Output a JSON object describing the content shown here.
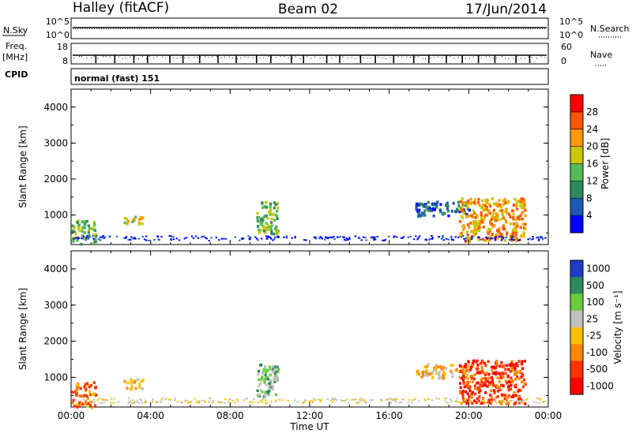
{
  "header": {
    "station": "Halley (fitACF)",
    "beam": "Beam 02",
    "date": "17/Jun/2014"
  },
  "panels": {
    "nsky_label": "N.Sky",
    "nsearch_label": "N.Search",
    "freq_label": "Freq.",
    "freq_unit": "[MHz]",
    "nave_label": "Nave",
    "cpid_label": "CPID",
    "cpid_value": "normal (fast) 151",
    "nsky_ticks": [
      "10^5",
      "10^0"
    ],
    "nsearch_ticks": [
      "10^5",
      "10^0"
    ],
    "freq_ticks": [
      "18",
      "8"
    ],
    "nave_ticks": [
      "60",
      "0"
    ]
  },
  "colors": {
    "power_scale": [
      "#0000ff",
      "#1e5ab4",
      "#2f8a5e",
      "#55bb55",
      "#c8c800",
      "#ff9900",
      "#ff5500",
      "#ff0000"
    ],
    "velocity_scale": [
      "#1f3cc8",
      "#2f8a5e",
      "#6acb3c",
      "#c0c0c0",
      "#ffc000",
      "#ff8800",
      "#ff3300",
      "#ff0000"
    ]
  },
  "chart_data": [
    {
      "type": "heatmap",
      "ylabel": "Slant Range [km]",
      "xlabel": "",
      "ylim": [
        180,
        4500
      ],
      "yticks": [
        "1000",
        "2000",
        "3000",
        "4000"
      ],
      "xlim": [
        0,
        24
      ],
      "colorbar": {
        "label": "Power [dB]",
        "range": [
          0,
          32
        ],
        "ticks": [
          "4",
          "8",
          "12",
          "16",
          "20",
          "24",
          "28"
        ]
      },
      "echo_regions": [
        {
          "t0": 0.0,
          "t1": 1.2,
          "r0": 200,
          "r1": 900,
          "level": 3
        },
        {
          "t0": 2.6,
          "t1": 3.6,
          "r0": 700,
          "r1": 1000,
          "level": 4
        },
        {
          "t0": 9.3,
          "t1": 10.4,
          "r0": 500,
          "r1": 1400,
          "level": 3
        },
        {
          "t0": 17.3,
          "t1": 20.0,
          "r0": 1000,
          "r1": 1400,
          "level": 1
        },
        {
          "t0": 19.5,
          "t1": 22.8,
          "r0": 300,
          "r1": 1500,
          "level": 5
        }
      ]
    },
    {
      "type": "heatmap",
      "ylabel": "Slant Range [km]",
      "xlabel": "Time UT",
      "ylim": [
        180,
        4500
      ],
      "yticks": [
        "1000",
        "2000",
        "3000",
        "4000"
      ],
      "xlim": [
        0,
        24
      ],
      "xticks": [
        "00:00",
        "04:00",
        "08:00",
        "12:00",
        "16:00",
        "20:00",
        "00:00"
      ],
      "colorbar": {
        "label": "Velocity [m s⁻¹]",
        "ticks": [
          "1000",
          "500",
          "100",
          "25",
          "-25",
          "-100",
          "-500",
          "-1000"
        ]
      },
      "echo_regions": [
        {
          "t0": 0.0,
          "t1": 1.2,
          "r0": 200,
          "r1": 900,
          "level": 5
        },
        {
          "t0": 2.6,
          "t1": 3.6,
          "r0": 700,
          "r1": 1000,
          "level": 4
        },
        {
          "t0": 9.3,
          "t1": 10.4,
          "r0": 500,
          "r1": 1400,
          "level": 2
        },
        {
          "t0": 17.3,
          "t1": 20.0,
          "r0": 1000,
          "r1": 1400,
          "level": 4
        },
        {
          "t0": 19.5,
          "t1": 22.8,
          "r0": 300,
          "r1": 1500,
          "level": 6
        }
      ]
    }
  ]
}
